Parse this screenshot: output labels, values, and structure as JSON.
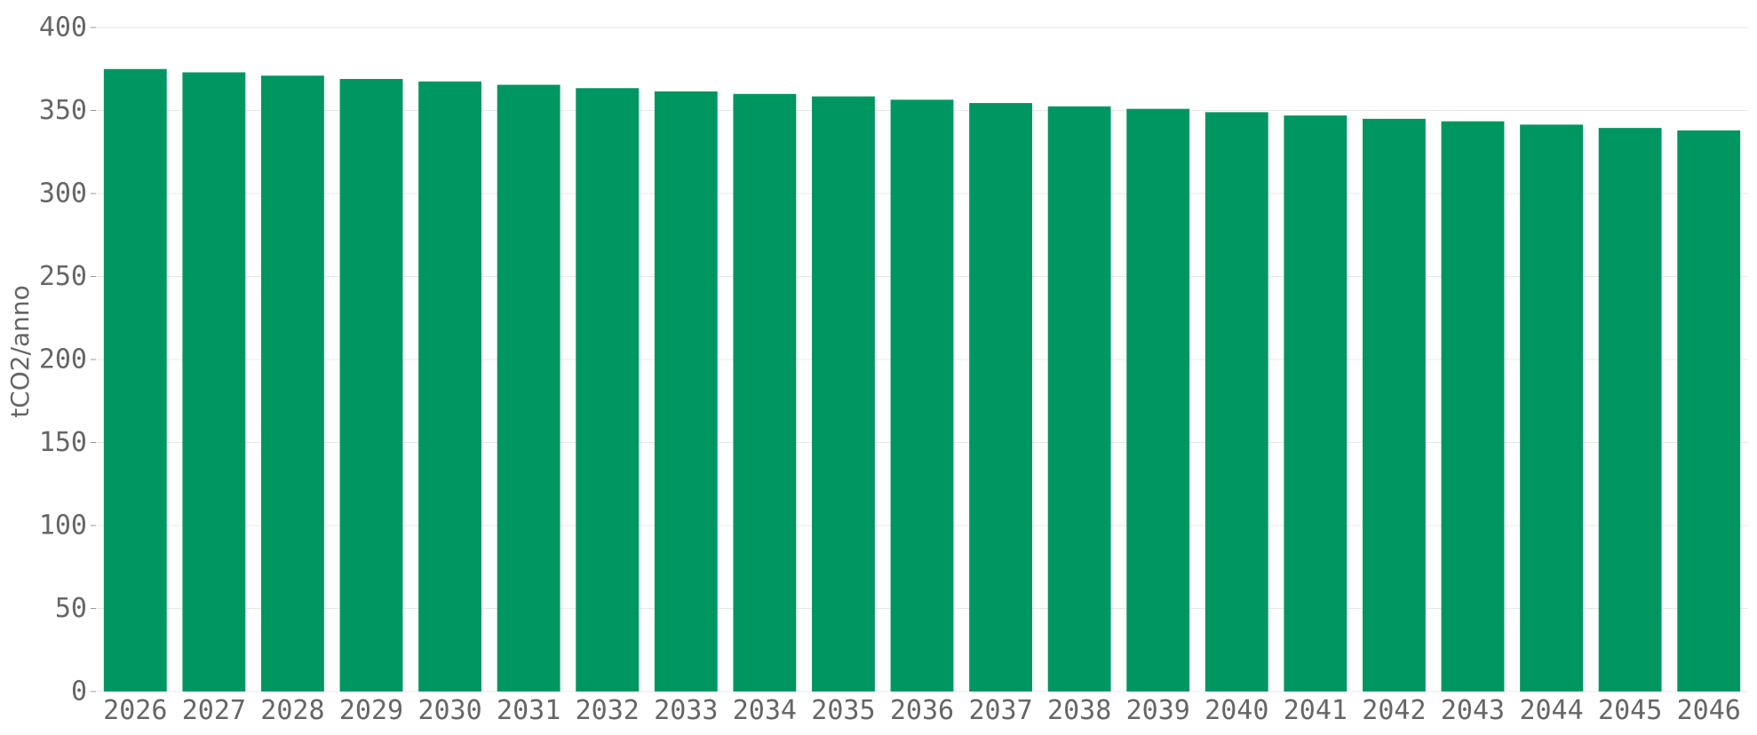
{
  "chart_data": {
    "type": "bar",
    "title": "",
    "xlabel": "",
    "ylabel": "tCO2/anno",
    "ylim": [
      0,
      400
    ],
    "yticks": [
      0,
      50,
      100,
      150,
      200,
      250,
      300,
      350,
      400
    ],
    "grid": true,
    "legend": "none",
    "bar_color": "#009662",
    "categories": [
      "2026",
      "2027",
      "2028",
      "2029",
      "2030",
      "2031",
      "2032",
      "2033",
      "2034",
      "2035",
      "2036",
      "2037",
      "2038",
      "2039",
      "2040",
      "2041",
      "2042",
      "2043",
      "2044",
      "2045",
      "2046"
    ],
    "values": [
      375,
      373,
      371,
      369,
      367.5,
      365.5,
      363.5,
      361.5,
      360,
      358.5,
      356.5,
      354.5,
      352.5,
      351,
      349,
      347,
      345,
      343.5,
      341.5,
      339.5,
      338
    ]
  }
}
